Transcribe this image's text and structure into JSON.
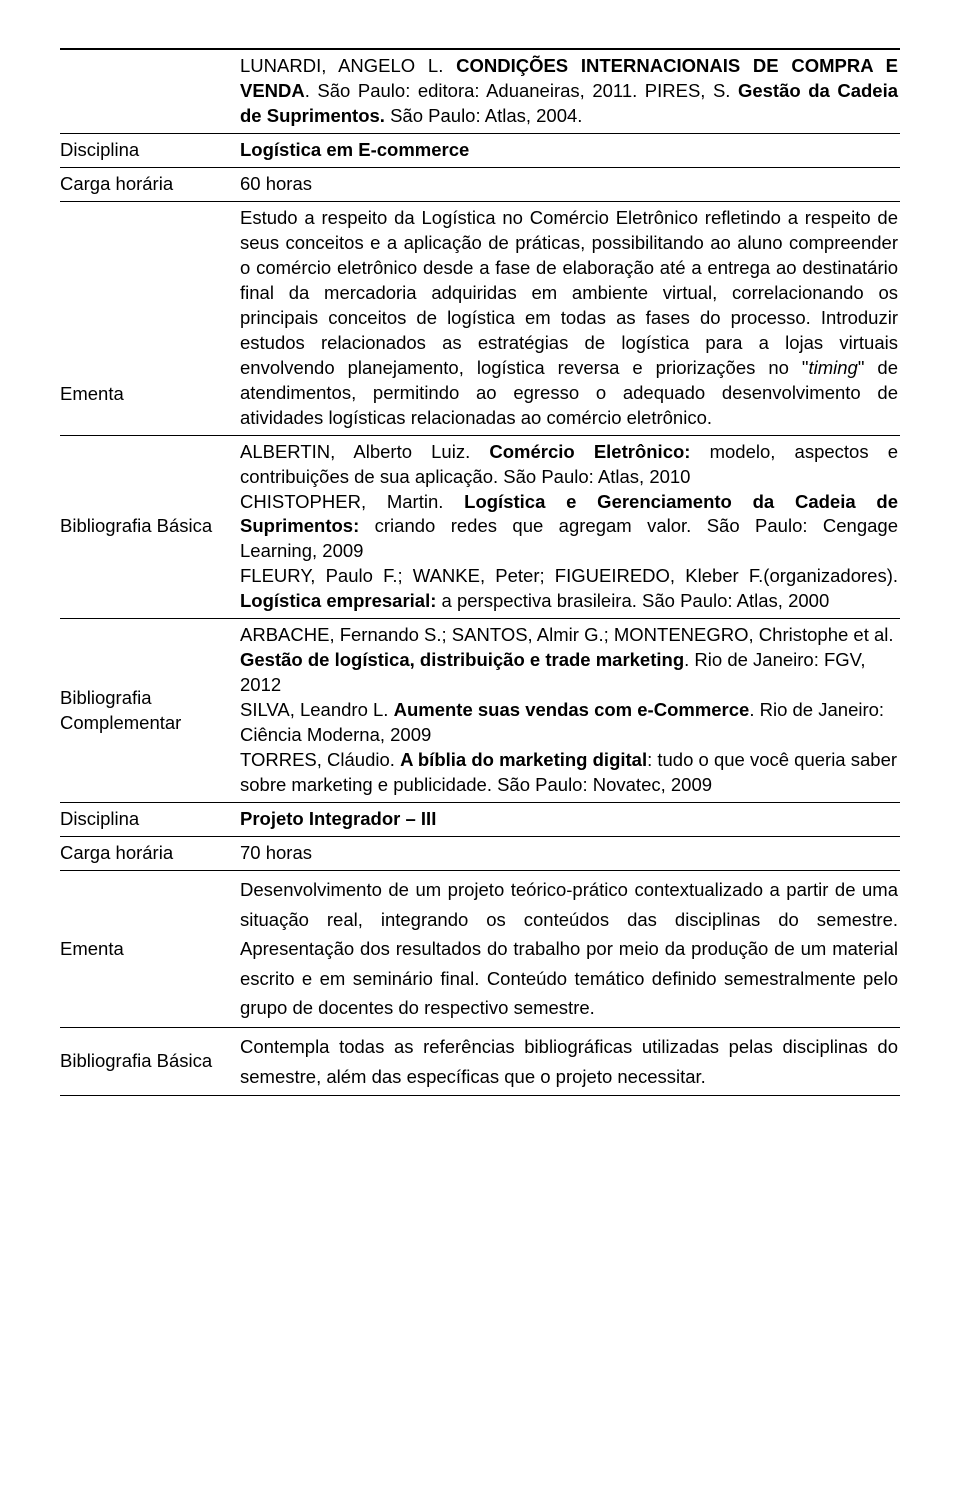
{
  "topRef": {
    "html": "LUNARDI, ANGELO L. <b>CONDIÇÕES INTERNACIONAIS DE COMPRA E VENDA</b>. São Paulo: editora: Aduaneiras, 2011. PIRES, S. <b>Gestão da Cadeia de Suprimentos.</b> São Paulo: Atlas, 2004."
  },
  "labels": {
    "disciplina": "Disciplina",
    "carga": "Carga horária",
    "ementa": "Ementa",
    "bibBasica": "Bibliografia Básica",
    "bibComp": "Bibliografia Complementar"
  },
  "d1": {
    "nome": "Logística em E-commerce",
    "carga": "60 horas",
    "ementa": "Estudo a respeito da Logística no Comércio Eletrônico refletindo a respeito de seus conceitos e a aplicação de práticas, possibilitando ao aluno compreender o comércio eletrônico desde a fase de elaboração até a entrega ao destinatário final da mercadoria adquiridas em ambiente virtual, correlacionando os principais conceitos de logística em todas as fases do processo. Introduzir estudos relacionados as estratégias de logística para a lojas virtuais envolvendo planejamento, logística reversa e priorizações no \"<span class=\"italic\">timing</span>\" de atendimentos, permitindo ao egresso o adequado desenvolvimento de atividades logísticas relacionadas ao comércio eletrônico.",
    "bibBasica": "ALBERTIN, Alberto Luiz. <b>Comércio Eletrônico:</b> modelo, aspectos e contribuições de sua aplicação. São Paulo: Atlas, 2010<br>CHISTOPHER, Martin. <b>Logística e Gerenciamento da Cadeia de Suprimentos:</b> criando redes que agregam valor. São Paulo: Cengage Learning, 2009<br>FLEURY, Paulo F.; WANKE, Peter; FIGUEIREDO, Kleber F.(organizadores). <b>Logística empresarial:</b> a perspectiva brasileira. São Paulo: Atlas, 2000",
    "bibComp": "ARBACHE, Fernando S.; SANTOS, Almir G.; MONTENEGRO, Christophe et al. <b>Gestão de logística, distribuição e trade marketing</b>. Rio de Janeiro: FGV, 2012<br>SILVA, Leandro L. <b>Aumente suas vendas com e-Commerce</b>. Rio de Janeiro: Ciência Moderna, 2009<br>TORRES, Cláudio. <b>A bíblia do marketing digital</b>: tudo o que você queria saber sobre marketing e publicidade. São Paulo: Novatec, 2009"
  },
  "d2": {
    "nome": "Projeto Integrador – III",
    "carga": "70 horas",
    "ementa": "Desenvolvimento de um projeto teórico-prático contextualizado a partir de uma situação real, integrando os conteúdos das disciplinas do semestre. Apresentação dos resultados do trabalho por meio da produção de um material escrito e em seminário final. Conteúdo temático definido semestralmente pelo grupo de docentes do respectivo semestre.",
    "bibBasica": "Contempla todas as referências bibliográficas utilizadas pelas disciplinas do semestre, além das específicas que o projeto necessitar."
  }
}
